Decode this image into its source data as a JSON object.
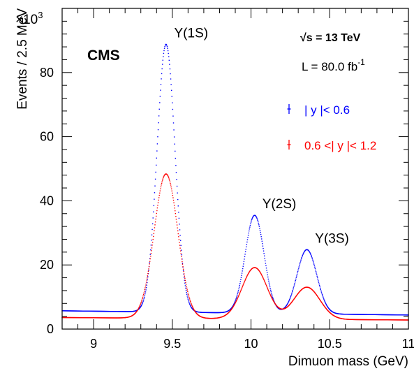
{
  "colors": {
    "series_central": "#0000ff",
    "series_forward": "#ff0000",
    "axis": "#000000"
  },
  "chart_data": {
    "type": "line",
    "title": "",
    "xlabel": "Dimuon mass (GeV)",
    "ylabel": "Events / 2.5 MeV",
    "xlim": [
      8.8,
      11.0
    ],
    "ylim": [
      0,
      100
    ],
    "y_multiplier": "×10",
    "y_multiplier_exp": "3",
    "x_ticks": [
      9,
      9.5,
      10,
      10.5,
      11
    ],
    "x_tick_labels": [
      "9",
      "9.5",
      "10",
      "10.5",
      "11"
    ],
    "y_ticks": [
      0,
      20,
      40,
      60,
      80
    ],
    "y_tick_labels": [
      "0",
      "20",
      "40",
      "60",
      "80"
    ],
    "grid": false,
    "legend_position": "right",
    "experiment_label": "CMS",
    "energy_label": {
      "sqrt": "√s",
      "rest": " = 13 TeV"
    },
    "lumi_label": {
      "base": "L = 80.0 fb",
      "exp": "-1"
    },
    "peak_labels": [
      {
        "text": "Υ(1S)",
        "x": 9.46
      },
      {
        "text": "Υ(2S)",
        "x": 10.02
      },
      {
        "text": "Υ(3S)",
        "x": 10.355
      }
    ],
    "series": [
      {
        "name": "| y |< 0.6",
        "color": "#0000ff",
        "background": {
          "c0": 5.7,
          "slope": -0.6
        },
        "peaks": [
          {
            "mass": 9.46,
            "height": 83.5,
            "sigma": 0.057
          },
          {
            "mass": 10.023,
            "height": 30.5,
            "sigma": 0.06
          },
          {
            "mass": 10.355,
            "height": 20.0,
            "sigma": 0.063
          }
        ]
      },
      {
        "name": "0.6 <| y |< 1.2",
        "color": "#ff0000",
        "background": {
          "c0": 3.6,
          "slope": -0.35
        },
        "peaks": [
          {
            "mass": 9.46,
            "height": 45.0,
            "sigma": 0.075
          },
          {
            "mass": 10.023,
            "height": 16.0,
            "sigma": 0.08
          },
          {
            "mass": 10.355,
            "height": 10.0,
            "sigma": 0.083
          }
        ]
      }
    ]
  }
}
